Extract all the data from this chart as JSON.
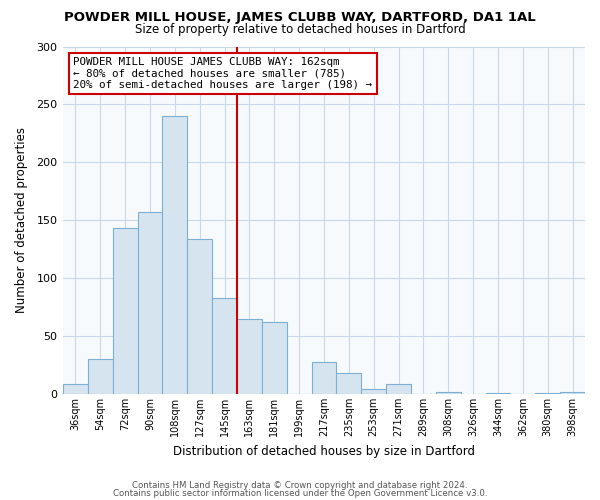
{
  "title": "POWDER MILL HOUSE, JAMES CLUBB WAY, DARTFORD, DA1 1AL",
  "subtitle": "Size of property relative to detached houses in Dartford",
  "xlabel": "Distribution of detached houses by size in Dartford",
  "ylabel": "Number of detached properties",
  "bar_labels": [
    "36sqm",
    "54sqm",
    "72sqm",
    "90sqm",
    "108sqm",
    "127sqm",
    "145sqm",
    "163sqm",
    "181sqm",
    "199sqm",
    "217sqm",
    "235sqm",
    "253sqm",
    "271sqm",
    "289sqm",
    "308sqm",
    "326sqm",
    "344sqm",
    "362sqm",
    "380sqm",
    "398sqm"
  ],
  "bar_values": [
    9,
    30,
    143,
    157,
    240,
    134,
    83,
    65,
    62,
    0,
    28,
    18,
    4,
    9,
    0,
    2,
    0,
    1,
    0,
    1,
    2
  ],
  "bar_color": "#d6e4f0",
  "bar_edge_color": "#7bafd4",
  "vline_x": 7,
  "vline_color": "#cc0000",
  "annotation_lines": [
    "POWDER MILL HOUSE JAMES CLUBB WAY: 162sqm",
    "← 80% of detached houses are smaller (785)",
    "20% of semi-detached houses are larger (198) →"
  ],
  "annotation_box_color": "#ffffff",
  "annotation_box_edge": "#cc0000",
  "ylim": [
    0,
    300
  ],
  "yticks": [
    0,
    50,
    100,
    150,
    200,
    250,
    300
  ],
  "footer1": "Contains HM Land Registry data © Crown copyright and database right 2024.",
  "footer2": "Contains public sector information licensed under the Open Government Licence v3.0.",
  "bg_color": "#ffffff",
  "plot_bg_color": "#f7fafc",
  "grid_color": "#c8d8e8"
}
